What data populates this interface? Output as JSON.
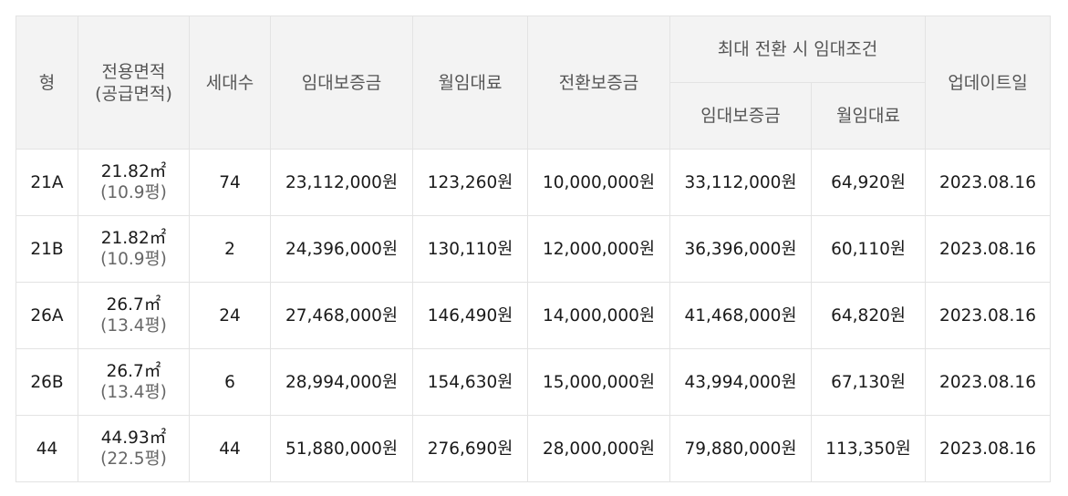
{
  "table": {
    "headers": {
      "type": "형",
      "area_line1": "전용면적",
      "area_line2": "(공급면적)",
      "households": "세대수",
      "deposit": "임대보증금",
      "rent": "월임대료",
      "conversion_deposit": "전환보증금",
      "max_conversion_group": "최대 전환 시 임대조건",
      "max_deposit": "임대보증금",
      "max_rent": "월임대료",
      "updated": "업데이트일"
    },
    "rows": [
      {
        "type": "21A",
        "area": "21.82㎡",
        "supply": "(10.9평)",
        "households": "74",
        "deposit": "23,112,000원",
        "rent": "123,260원",
        "conversion_deposit": "10,000,000원",
        "max_deposit": "33,112,000원",
        "max_rent": "64,920원",
        "updated": "2023.08.16"
      },
      {
        "type": "21B",
        "area": "21.82㎡",
        "supply": "(10.9평)",
        "households": "2",
        "deposit": "24,396,000원",
        "rent": "130,110원",
        "conversion_deposit": "12,000,000원",
        "max_deposit": "36,396,000원",
        "max_rent": "60,110원",
        "updated": "2023.08.16"
      },
      {
        "type": "26A",
        "area": "26.7㎡",
        "supply": "(13.4평)",
        "households": "24",
        "deposit": "27,468,000원",
        "rent": "146,490원",
        "conversion_deposit": "14,000,000원",
        "max_deposit": "41,468,000원",
        "max_rent": "64,820원",
        "updated": "2023.08.16"
      },
      {
        "type": "26B",
        "area": "26.7㎡",
        "supply": "(13.4평)",
        "households": "6",
        "deposit": "28,994,000원",
        "rent": "154,630원",
        "conversion_deposit": "15,000,000원",
        "max_deposit": "43,994,000원",
        "max_rent": "67,130원",
        "updated": "2023.08.16"
      },
      {
        "type": "44",
        "area": "44.93㎡",
        "supply": "(22.5평)",
        "households": "44",
        "deposit": "51,880,000원",
        "rent": "276,690원",
        "conversion_deposit": "28,000,000원",
        "max_deposit": "79,880,000원",
        "max_rent": "113,350원",
        "updated": "2023.08.16"
      }
    ]
  },
  "colors": {
    "header_bg": "#f3f3f3",
    "border": "#e3e3e3",
    "header_text": "#555555",
    "body_text": "#1a1a1a",
    "sub_text": "#666666"
  }
}
